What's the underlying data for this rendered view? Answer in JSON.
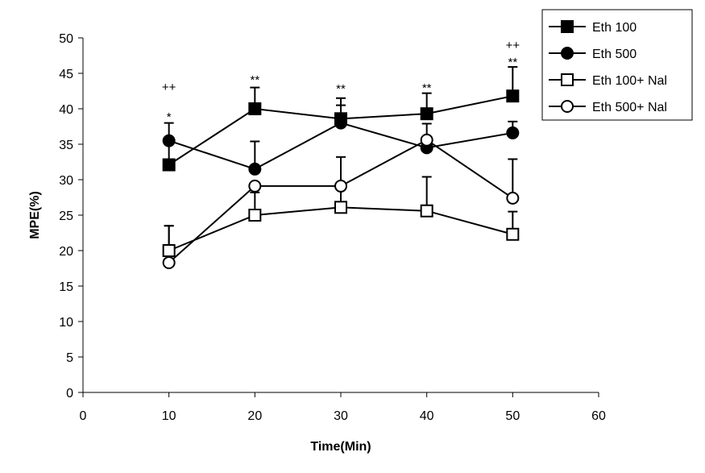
{
  "chart_data": {
    "type": "line",
    "xlabel": "Time(Min)",
    "ylabel": "MPE(%)",
    "xlim": [
      0,
      60
    ],
    "ylim": [
      0,
      50
    ],
    "xticks": [
      0,
      10,
      20,
      30,
      40,
      50,
      60
    ],
    "yticks": [
      0,
      5,
      10,
      15,
      20,
      25,
      30,
      35,
      40,
      45,
      50
    ],
    "grid": false,
    "legend_position": "top-right",
    "x": [
      10,
      20,
      30,
      40,
      50
    ],
    "series": [
      {
        "name": "Eth 100",
        "marker": "square-filled",
        "values": [
          32.1,
          40.0,
          38.6,
          39.3,
          41.8
        ],
        "error_up": [
          3.4,
          3.0,
          2.9,
          2.9,
          4.1
        ]
      },
      {
        "name": "Eth 500",
        "marker": "circle-filled",
        "values": [
          35.5,
          31.5,
          38.0,
          34.5,
          36.6
        ],
        "error_up": [
          2.5,
          3.9,
          2.5,
          3.4,
          1.6
        ]
      },
      {
        "name": "Eth 100+ Nal",
        "marker": "square-open",
        "values": [
          20.0,
          25.0,
          26.1,
          25.6,
          22.3
        ],
        "error_up": [
          3.5,
          3.2,
          3.0,
          4.8,
          3.2
        ]
      },
      {
        "name": "Eth 500+ Nal",
        "marker": "circle-open",
        "values": [
          18.3,
          29.1,
          29.1,
          35.6,
          27.4
        ],
        "error_up": [
          5.2,
          0.0,
          4.1,
          0.0,
          5.5
        ]
      }
    ],
    "annotations": [
      {
        "x": 10,
        "value": 42.5,
        "text": "++"
      },
      {
        "x": 10,
        "value": 38.3,
        "text": "*"
      },
      {
        "x": 20,
        "value": 43.5,
        "text": "**"
      },
      {
        "x": 30,
        "value": 42.3,
        "text": "**"
      },
      {
        "x": 40,
        "value": 42.4,
        "text": "**"
      },
      {
        "x": 50,
        "value": 48.4,
        "text": "++"
      },
      {
        "x": 50,
        "value": 46.0,
        "text": "**"
      }
    ]
  }
}
